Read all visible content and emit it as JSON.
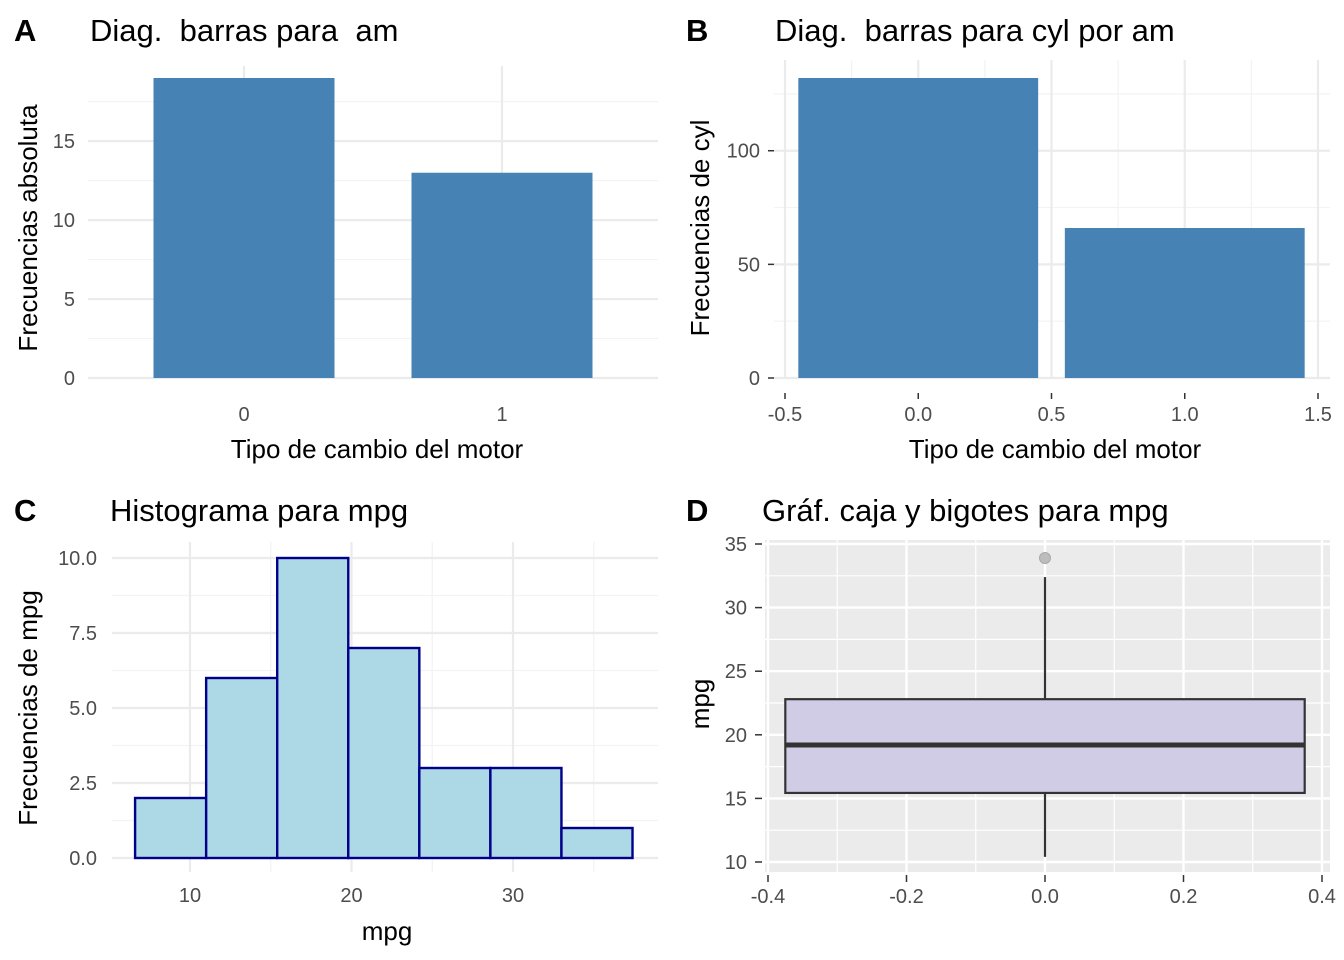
{
  "chart_data": [
    {
      "type": "bar",
      "panel": "A",
      "title": "Diag.  barras para  am",
      "xlabel": "Tipo de cambio del motor",
      "ylabel": "Frecuencias absoluta",
      "categories": [
        "0",
        "1"
      ],
      "values": [
        19,
        13
      ],
      "ylim": [
        0,
        19
      ],
      "yticks": [
        0,
        5,
        10,
        15
      ],
      "color": "#4682B4",
      "grid": true
    },
    {
      "type": "bar",
      "panel": "B",
      "title": "Diag.  barras para cyl por am",
      "xlabel": "Tipo de cambio del motor",
      "ylabel": "Frecuencias de cyl",
      "x": [
        0,
        1
      ],
      "values": [
        132,
        66
      ],
      "xlim": [
        -0.5,
        1.5
      ],
      "ylim": [
        0,
        132
      ],
      "xticks": [
        -0.5,
        0.0,
        0.5,
        1.0,
        1.5
      ],
      "xtick_labels": [
        "-0.5",
        "0.0",
        "0.5",
        "1.0",
        "1.5"
      ],
      "yticks": [
        0,
        50,
        100
      ],
      "color": "#4682B4",
      "grid": true
    },
    {
      "type": "bar",
      "panel": "C",
      "title": "Histograma para mpg",
      "xlabel": "mpg",
      "ylabel": "Frecuencias de mpg",
      "bins": [
        {
          "x0": 6.6,
          "x1": 11.0,
          "count": 2
        },
        {
          "x0": 11.0,
          "x1": 15.4,
          "count": 6
        },
        {
          "x0": 15.4,
          "x1": 19.8,
          "count": 10
        },
        {
          "x0": 19.8,
          "x1": 24.2,
          "count": 7
        },
        {
          "x0": 24.2,
          "x1": 28.6,
          "count": 3
        },
        {
          "x0": 28.6,
          "x1": 33.0,
          "count": 3
        },
        {
          "x0": 33.0,
          "x1": 37.4,
          "count": 1
        }
      ],
      "xlim": [
        5.1,
        38.9
      ],
      "ylim": [
        0,
        10
      ],
      "xticks": [
        10,
        20,
        30
      ],
      "yticks": [
        0.0,
        2.5,
        5.0,
        7.5,
        10.0
      ],
      "ytick_labels": [
        "0.0",
        "2.5",
        "5.0",
        "7.5",
        "10.0"
      ],
      "fill": "#ADD8E6",
      "stroke": "#00008B",
      "grid": true
    },
    {
      "type": "box",
      "panel": "D",
      "title": "Gráf. caja y bigotes para mpg",
      "ylabel": "mpg",
      "xlabel": "",
      "box": {
        "q1": 15.43,
        "median": 19.2,
        "q3": 22.8,
        "whisker_low": 10.4,
        "whisker_high": 32.4,
        "outliers": [
          33.9
        ],
        "x_from": -0.375,
        "x_to": 0.375
      },
      "xlim": [
        -0.41,
        0.41
      ],
      "ylim": [
        9.2,
        35.1
      ],
      "xticks": [
        -0.4,
        -0.2,
        0.0,
        0.2,
        0.4
      ],
      "xtick_labels": [
        "-0.4",
        "-0.2",
        "0.0",
        "0.2",
        "0.4"
      ],
      "yticks": [
        10,
        15,
        20,
        25,
        30,
        35
      ],
      "fill": "#D0CCE6",
      "panel_background": "#EBEBEB",
      "grid": true
    }
  ]
}
